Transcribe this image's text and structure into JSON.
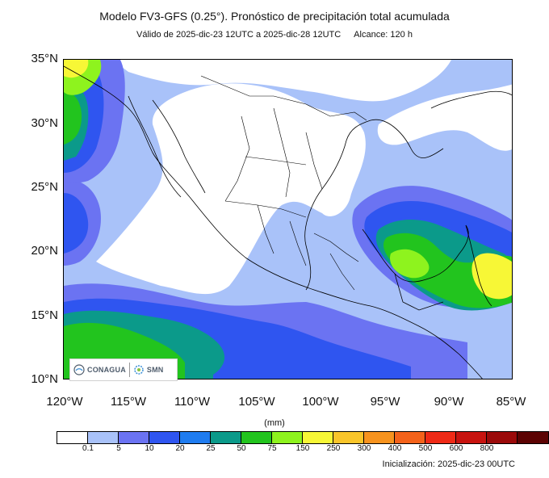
{
  "header": {
    "title": "Modelo FV3-GFS (0.25°). Pronóstico de precipitación total acumulada",
    "valid": "Válido de 2025-dic-23 12UTC a 2025-dic-28 12UTC",
    "range": "Alcance: 120 h"
  },
  "axes": {
    "lat_labels": [
      "35°N",
      "30°N",
      "25°N",
      "20°N",
      "15°N",
      "10°N"
    ],
    "lon_labels": [
      "120°W",
      "115°W",
      "110°W",
      "105°W",
      "100°W",
      "95°W",
      "90°W",
      "85°W"
    ]
  },
  "colorbar": {
    "units": "(mm)",
    "labels": [
      "0.1",
      "5",
      "10",
      "20",
      "25",
      "50",
      "75",
      "150",
      "250",
      "300",
      "400",
      "500",
      "600",
      "800"
    ],
    "colors": [
      "#ffffff",
      "#a9c2f9",
      "#6b73f2",
      "#2f55f0",
      "#1f7cf0",
      "#0b9a8a",
      "#22c41e",
      "#8ef31e",
      "#f7f736",
      "#f9c52a",
      "#f7931e",
      "#f4621a",
      "#ef2a16",
      "#c8130f",
      "#9b0a0a",
      "#5c0303"
    ]
  },
  "logos": {
    "conagua": "CONAGUA",
    "smn": "SMN"
  },
  "footer": {
    "init": "Inicialización: 2025-dic-23 00UTC"
  }
}
